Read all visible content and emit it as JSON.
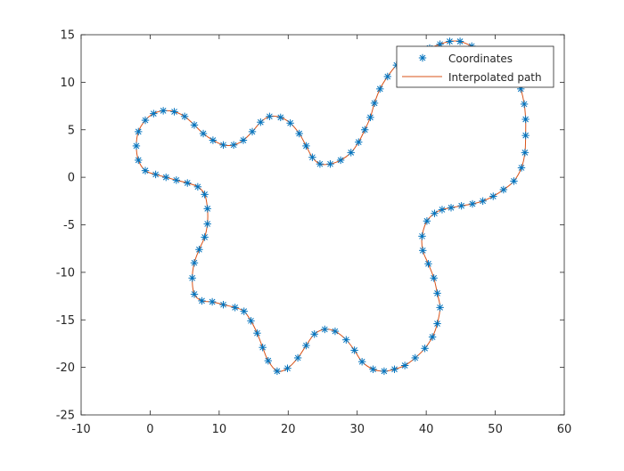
{
  "chart_data": {
    "type": "line",
    "title": "",
    "xlabel": "",
    "ylabel": "",
    "xlim": [
      -10,
      60
    ],
    "ylim": [
      -25,
      15
    ],
    "x_ticks": [
      "-10",
      "0",
      "10",
      "20",
      "30",
      "40",
      "50",
      "60"
    ],
    "y_ticks": [
      "15",
      "10",
      "5",
      "0",
      "-5",
      "-10",
      "-15",
      "-20",
      "-25"
    ],
    "grid": false,
    "legend_position": "top-right",
    "series": [
      {
        "name": "Coordinates",
        "style": "markers",
        "marker": "asterisk",
        "color": "#0072BD",
        "points": [
          [
            43.4,
            14.3
          ],
          [
            44.9,
            14.3
          ],
          [
            46.6,
            13.8
          ],
          [
            48.3,
            13.2
          ],
          [
            50.0,
            12.6
          ],
          [
            51.6,
            11.7
          ],
          [
            53.0,
            10.6
          ],
          [
            53.7,
            9.3
          ],
          [
            54.2,
            7.7
          ],
          [
            54.4,
            6.1
          ],
          [
            54.4,
            4.4
          ],
          [
            54.3,
            2.6
          ],
          [
            53.8,
            1.0
          ],
          [
            52.7,
            -0.4
          ],
          [
            51.2,
            -1.3
          ],
          [
            49.7,
            -2.0
          ],
          [
            48.2,
            -2.5
          ],
          [
            46.7,
            -2.8
          ],
          [
            45.1,
            -3.0
          ],
          [
            43.6,
            -3.2
          ],
          [
            42.3,
            -3.4
          ],
          [
            41.2,
            -3.8
          ],
          [
            40.1,
            -4.6
          ],
          [
            39.4,
            -6.2
          ],
          [
            39.5,
            -7.7
          ],
          [
            40.3,
            -9.1
          ],
          [
            41.1,
            -10.6
          ],
          [
            41.6,
            -12.2
          ],
          [
            42.0,
            -13.7
          ],
          [
            41.6,
            -15.4
          ],
          [
            40.9,
            -16.8
          ],
          [
            39.8,
            -18.0
          ],
          [
            38.4,
            -19.0
          ],
          [
            36.9,
            -19.8
          ],
          [
            35.4,
            -20.2
          ],
          [
            33.9,
            -20.4
          ],
          [
            32.3,
            -20.2
          ],
          [
            30.7,
            -19.4
          ],
          [
            29.6,
            -18.2
          ],
          [
            28.4,
            -17.1
          ],
          [
            26.8,
            -16.2
          ],
          [
            25.3,
            -16.0
          ],
          [
            23.8,
            -16.5
          ],
          [
            22.6,
            -17.7
          ],
          [
            21.4,
            -19.0
          ],
          [
            19.9,
            -20.1
          ],
          [
            18.4,
            -20.4
          ],
          [
            17.1,
            -19.3
          ],
          [
            16.3,
            -17.9
          ],
          [
            15.5,
            -16.4
          ],
          [
            14.6,
            -15.1
          ],
          [
            13.6,
            -14.1
          ],
          [
            12.3,
            -13.7
          ],
          [
            10.6,
            -13.4
          ],
          [
            9.0,
            -13.1
          ],
          [
            7.5,
            -13.0
          ],
          [
            6.4,
            -12.3
          ],
          [
            6.1,
            -10.6
          ],
          [
            6.4,
            -9.0
          ],
          [
            7.1,
            -7.6
          ],
          [
            7.9,
            -6.3
          ],
          [
            8.3,
            -4.9
          ],
          [
            8.3,
            -3.3
          ],
          [
            7.9,
            -1.8
          ],
          [
            6.9,
            -1.0
          ],
          [
            5.4,
            -0.6
          ],
          [
            3.8,
            -0.3
          ],
          [
            2.3,
            0.0
          ],
          [
            0.8,
            0.3
          ],
          [
            -0.7,
            0.7
          ],
          [
            -1.7,
            1.8
          ],
          [
            -2.0,
            3.3
          ],
          [
            -1.7,
            4.8
          ],
          [
            -0.7,
            6.0
          ],
          [
            0.5,
            6.7
          ],
          [
            1.9,
            7.0
          ],
          [
            3.5,
            6.9
          ],
          [
            5.0,
            6.4
          ],
          [
            6.4,
            5.5
          ],
          [
            7.7,
            4.6
          ],
          [
            9.1,
            3.9
          ],
          [
            10.6,
            3.4
          ],
          [
            12.1,
            3.4
          ],
          [
            13.5,
            3.9
          ],
          [
            14.8,
            4.8
          ],
          [
            16.0,
            5.8
          ],
          [
            17.3,
            6.4
          ],
          [
            18.9,
            6.3
          ],
          [
            20.3,
            5.7
          ],
          [
            21.6,
            4.6
          ],
          [
            22.6,
            3.3
          ],
          [
            23.5,
            2.1
          ],
          [
            24.6,
            1.4
          ],
          [
            26.1,
            1.4
          ],
          [
            27.6,
            1.8
          ],
          [
            29.1,
            2.6
          ],
          [
            30.2,
            3.7
          ],
          [
            31.1,
            5.0
          ],
          [
            31.9,
            6.3
          ],
          [
            32.5,
            7.8
          ],
          [
            33.3,
            9.3
          ],
          [
            34.4,
            10.6
          ],
          [
            35.7,
            11.8
          ],
          [
            37.3,
            12.7
          ],
          [
            38.9,
            13.2
          ],
          [
            40.5,
            13.6
          ],
          [
            42.0,
            14.0
          ]
        ]
      },
      {
        "name": "Interpolated path",
        "style": "line",
        "color": "#D95319",
        "closed": true
      }
    ]
  }
}
